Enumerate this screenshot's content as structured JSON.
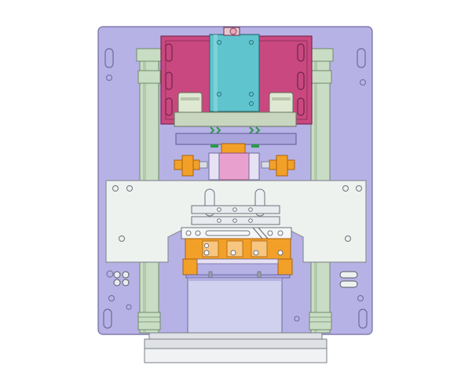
{
  "drawing": {
    "subject": "",
    "colors": {
      "background": "#ffffff",
      "base_plate": "#b7b2e6",
      "plate_outline": "#6f6a9e",
      "guide_post": "#c9ddc4",
      "guide_post_dark": "#9fb898",
      "cylinder_body": "#c8487f",
      "cylinder_head": "#5fc4cd",
      "upper_block": "#c8d6bf",
      "lavender_plate": "#a9a4dc",
      "orange_part": "#f2a028",
      "pink_insert": "#e8a1cf",
      "white_plate": "#edf2ef",
      "white_plate_outline": "#8c8f96",
      "spring_green": "#2b9a48",
      "steel": "#d9dde0",
      "bottom_block": "#cfd1ee",
      "base_bar": "#dfe1e5"
    }
  }
}
